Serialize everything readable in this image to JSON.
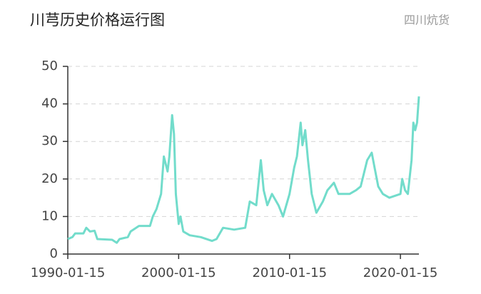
{
  "chart_data": {
    "type": "line",
    "title": "川芎历史价格运行图",
    "source": "四川炕货",
    "x": [
      "1990-01-15",
      "1990-06-15",
      "1990-09-15",
      "1991-06-15",
      "1991-09-15",
      "1992-01-15",
      "1992-06-15",
      "1992-09-15",
      "1994-01-15",
      "1994-06-15",
      "1994-09-15",
      "1995-06-15",
      "1995-09-15",
      "1996-06-15",
      "1997-06-15",
      "1997-09-15",
      "1998-01-15",
      "1998-06-15",
      "1998-09-15",
      "1999-01-15",
      "1999-03-15",
      "1999-06-15",
      "1999-08-15",
      "1999-10-15",
      "2000-01-15",
      "2000-03-15",
      "2000-06-15",
      "2001-01-15",
      "2002-01-15",
      "2003-01-15",
      "2003-06-15",
      "2004-01-15",
      "2005-01-15",
      "2006-01-15",
      "2006-06-15",
      "2007-01-15",
      "2007-06-15",
      "2007-09-15",
      "2008-01-15",
      "2008-06-15",
      "2009-01-15",
      "2009-06-15",
      "2010-01-15",
      "2010-06-15",
      "2010-09-15",
      "2011-01-15",
      "2011-03-15",
      "2011-06-15",
      "2011-09-15",
      "2012-01-15",
      "2012-06-15",
      "2013-01-15",
      "2013-06-15",
      "2014-01-15",
      "2014-06-15",
      "2015-06-15",
      "2016-01-15",
      "2016-06-15",
      "2017-01-15",
      "2017-06-15",
      "2017-09-15",
      "2018-01-15",
      "2018-06-15",
      "2019-01-15",
      "2020-01-15",
      "2020-03-15",
      "2020-06-15",
      "2020-09-15",
      "2021-01-15",
      "2021-03-15",
      "2021-05-15",
      "2021-07-15",
      "2021-09-15"
    ],
    "values": [
      4,
      4.5,
      5.5,
      5.5,
      7,
      6,
      6.2,
      4,
      3.8,
      3,
      4,
      4.5,
      6,
      7.5,
      7.5,
      10,
      12,
      16,
      26,
      22,
      26,
      37,
      32,
      16,
      8,
      10,
      6,
      5,
      4.5,
      3.5,
      4,
      7,
      6.5,
      7,
      14,
      13,
      25,
      17,
      13,
      16,
      13,
      10,
      16,
      23,
      26,
      35,
      29,
      33,
      25,
      16,
      11,
      14,
      17,
      19,
      16,
      16,
      17,
      18,
      25,
      27,
      23,
      18,
      16,
      15,
      16,
      20,
      17,
      16,
      25,
      35,
      33,
      35,
      42
    ],
    "color": "#72dccb",
    "xlim": [
      "1990-01-15",
      "2021-09-15"
    ],
    "xticks": [
      "1990-01-15",
      "2000-01-15",
      "2010-01-15",
      "2020-01-15"
    ],
    "ylim": [
      0,
      50
    ],
    "yticks": [
      0,
      10,
      20,
      30,
      40,
      50
    ],
    "grid": true
  }
}
